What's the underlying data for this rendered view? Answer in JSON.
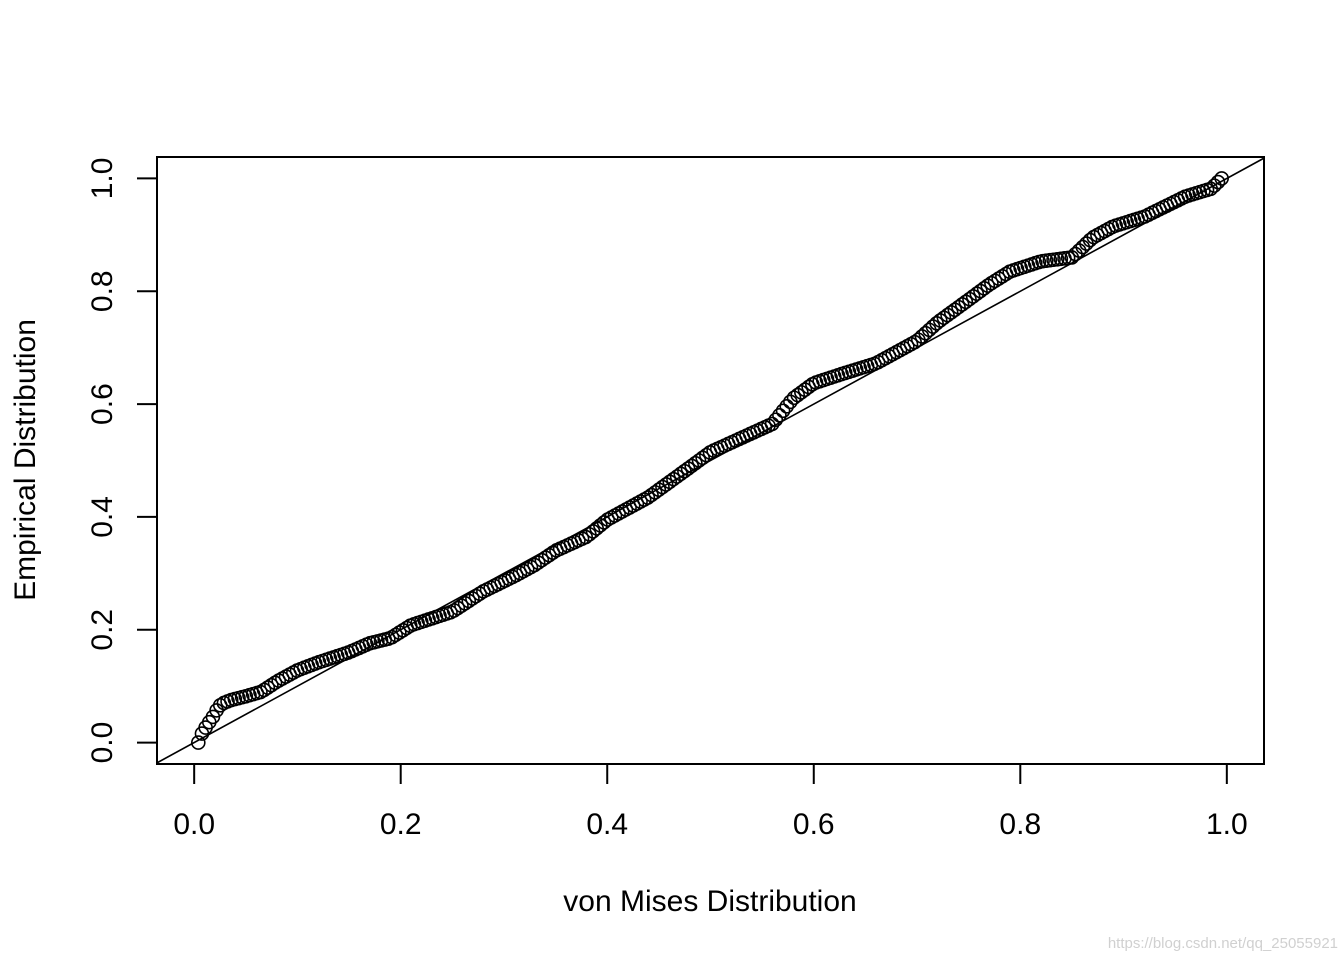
{
  "chart_data": {
    "type": "scatter",
    "title": "",
    "xlabel": "von Mises Distribution",
    "ylabel": "Empirical Distribution",
    "xlim": [
      -0.036,
      1.036
    ],
    "ylim": [
      -0.038,
      1.038
    ],
    "x_ticks": [
      "0.0",
      "0.2",
      "0.4",
      "0.6",
      "0.8",
      "1.0"
    ],
    "y_ticks": [
      "0.0",
      "0.2",
      "0.4",
      "0.6",
      "0.8",
      "1.0"
    ],
    "grid": false,
    "legend": "none",
    "reference_line": {
      "intercept": 0,
      "slope": 1
    },
    "marker": "open-circle",
    "point_color": "#000000",
    "anchor_points": [
      [
        0.004,
        0.0
      ],
      [
        0.008,
        0.018
      ],
      [
        0.013,
        0.032
      ],
      [
        0.018,
        0.045
      ],
      [
        0.022,
        0.058
      ],
      [
        0.026,
        0.068
      ],
      [
        0.035,
        0.075
      ],
      [
        0.05,
        0.082
      ],
      [
        0.065,
        0.09
      ],
      [
        0.08,
        0.108
      ],
      [
        0.1,
        0.128
      ],
      [
        0.12,
        0.142
      ],
      [
        0.15,
        0.16
      ],
      [
        0.17,
        0.176
      ],
      [
        0.19,
        0.185
      ],
      [
        0.21,
        0.208
      ],
      [
        0.25,
        0.232
      ],
      [
        0.28,
        0.268
      ],
      [
        0.31,
        0.295
      ],
      [
        0.33,
        0.315
      ],
      [
        0.35,
        0.34
      ],
      [
        0.38,
        0.365
      ],
      [
        0.4,
        0.395
      ],
      [
        0.44,
        0.435
      ],
      [
        0.48,
        0.488
      ],
      [
        0.5,
        0.515
      ],
      [
        0.53,
        0.54
      ],
      [
        0.56,
        0.565
      ],
      [
        0.58,
        0.61
      ],
      [
        0.6,
        0.637
      ],
      [
        0.63,
        0.655
      ],
      [
        0.66,
        0.672
      ],
      [
        0.7,
        0.712
      ],
      [
        0.72,
        0.745
      ],
      [
        0.75,
        0.785
      ],
      [
        0.77,
        0.812
      ],
      [
        0.79,
        0.835
      ],
      [
        0.82,
        0.853
      ],
      [
        0.85,
        0.86
      ],
      [
        0.87,
        0.895
      ],
      [
        0.89,
        0.915
      ],
      [
        0.92,
        0.932
      ],
      [
        0.94,
        0.95
      ],
      [
        0.96,
        0.968
      ],
      [
        0.985,
        0.982
      ],
      [
        0.995,
        1.0
      ]
    ],
    "n_points": 281
  },
  "watermark": "https://blog.csdn.net/qq_25055921"
}
